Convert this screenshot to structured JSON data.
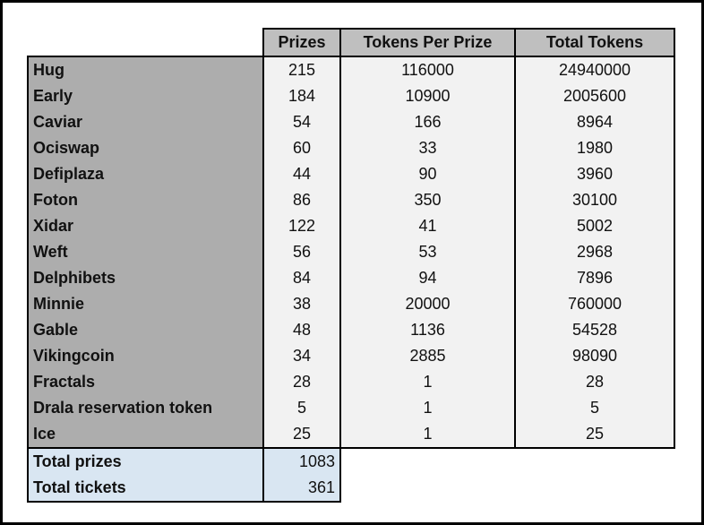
{
  "table": {
    "headers": {
      "prizes": "Prizes",
      "tokens_per_prize": "Tokens Per Prize",
      "total_tokens": "Total Tokens"
    },
    "rows": [
      {
        "label": "Hug",
        "prizes": "215",
        "tokens_per_prize": "116000",
        "total_tokens": "24940000"
      },
      {
        "label": "Early",
        "prizes": "184",
        "tokens_per_prize": "10900",
        "total_tokens": "2005600"
      },
      {
        "label": "Caviar",
        "prizes": "54",
        "tokens_per_prize": "166",
        "total_tokens": "8964"
      },
      {
        "label": "Ociswap",
        "prizes": "60",
        "tokens_per_prize": "33",
        "total_tokens": "1980"
      },
      {
        "label": "Defiplaza",
        "prizes": "44",
        "tokens_per_prize": "90",
        "total_tokens": "3960"
      },
      {
        "label": "Foton",
        "prizes": "86",
        "tokens_per_prize": "350",
        "total_tokens": "30100"
      },
      {
        "label": "Xidar",
        "prizes": "122",
        "tokens_per_prize": "41",
        "total_tokens": "5002"
      },
      {
        "label": "Weft",
        "prizes": "56",
        "tokens_per_prize": "53",
        "total_tokens": "2968"
      },
      {
        "label": "Delphibets",
        "prizes": "84",
        "tokens_per_prize": "94",
        "total_tokens": "7896"
      },
      {
        "label": "Minnie",
        "prizes": "38",
        "tokens_per_prize": "20000",
        "total_tokens": "760000"
      },
      {
        "label": "Gable",
        "prizes": "48",
        "tokens_per_prize": "1136",
        "total_tokens": "54528"
      },
      {
        "label": "Vikingcoin",
        "prizes": "34",
        "tokens_per_prize": "2885",
        "total_tokens": "98090"
      },
      {
        "label": "Fractals",
        "prizes": "28",
        "tokens_per_prize": "1",
        "total_tokens": "28"
      },
      {
        "label": "Drala reservation token",
        "prizes": "5",
        "tokens_per_prize": "1",
        "total_tokens": "5"
      },
      {
        "label": "Ice",
        "prizes": "25",
        "tokens_per_prize": "1",
        "total_tokens": "25"
      }
    ],
    "totals": [
      {
        "label": "Total prizes",
        "value": "1083"
      },
      {
        "label": "Total tickets",
        "value": "361"
      }
    ]
  },
  "colors": {
    "header_bg": "#bfbfbf",
    "label_column_bg": "#adadad",
    "data_cell_bg": "#f2f2f2",
    "totals_bg": "#d9e6f2",
    "border": "#000000",
    "text": "#111111"
  }
}
